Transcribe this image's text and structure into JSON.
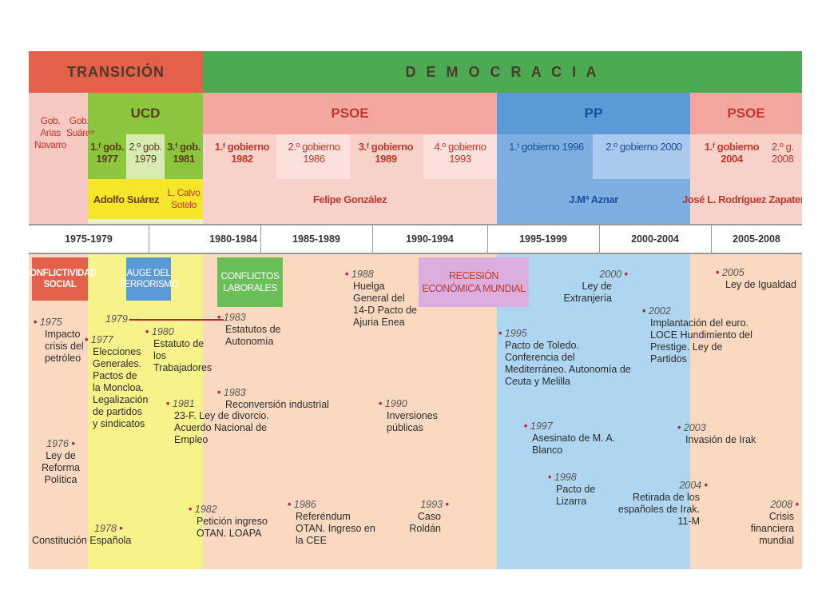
{
  "eras": {
    "transicion": "TRANSICIÓN",
    "democracia": "D E M O C R A C I A"
  },
  "parties": {
    "ucd": "UCD",
    "psoe1": "PSOE",
    "pp": "PP",
    "psoe2": "PSOE"
  },
  "governments": {
    "gob_arias": "Gob. Arias Navarro",
    "gob_suarez": "Gob. Suárez",
    "ucd1": "1.ᶠ gob. 1977",
    "ucd2": "2.º gob. 1979",
    "ucd3": "3.ᶠ gob. 1981",
    "psoe1": "1.ᶠ gobierno 1982",
    "psoe2": "2.º gobierno 1986",
    "psoe3": "3.ᶠ gobierno 1989",
    "psoe4": "4.º gobierno 1993",
    "pp1": "1.ᶠ gobierno 1996",
    "pp2": "2.º gobierno 2000",
    "psoe5": "1.ᶠ gobierno 2004",
    "psoe6": "2.º g. 2008"
  },
  "leaders": {
    "suarez": "Adolfo Suárez",
    "calvo": "L. Calvo Sotelo",
    "gonzalez": "Felipe González",
    "aznar": "J.Mª Aznar",
    "zapatero": "José L. Rodríguez Zapatero"
  },
  "periods": [
    "1975-1979",
    "1980-1984",
    "1985-1989",
    "1990-1994",
    "1995-1999",
    "2000-2004",
    "2005-2008"
  ],
  "themes": {
    "conflictividad": "CONFLICTIVIDAD SOCIAL",
    "terrorismo": "AUGE DEL TERRORISMO",
    "conflictos": "CONFLICTOS LABORALES",
    "recesion": "RECESIÓN ECONÓMICA MUNDIAL"
  },
  "events": {
    "e1975_year": "1975",
    "e1975_text": "Impacto crisis del petróleo",
    "e1976_year": "1976",
    "e1976_text": "Ley de Reforma Política",
    "e1977_year": "1977",
    "e1977_text": "Elecciones Generales. Pactos de la Moncloa. Legalización de partidos y sindicatos",
    "e1978_year": "1978",
    "e1978_text": "Constitución Española",
    "e1979_year": "1979",
    "e1980_year": "1980",
    "e1980_text": "Estatuto de los Trabajadores",
    "e1981_year": "1981",
    "e1981_text": "23-F. Ley de divorcio. Acuerdo Nacional de Empleo",
    "e1983a_year": "1983",
    "e1983a_text": "Estatutos de Autonomía",
    "e1983b_year": "1983",
    "e1983b_text": "Reconversión industrial",
    "e1982_year": "1982",
    "e1982_text": "Petición ingreso OTAN. LOAPA",
    "e1986_year": "1986",
    "e1986_text": "Referéndum OTAN. Ingreso en la CEE",
    "e1988_year": "1988",
    "e1988_text": "Huelga General del 14-D Pacto de Ajuria Enea",
    "e1990_year": "1990",
    "e1990_text": "Inversiones públicas",
    "e1993_year": "1993",
    "e1993_text": "Caso Roldán",
    "e1995_year": "1995",
    "e1995_text": "Pacto de Toledo. Conferencia del Mediterráneo. Autonomía de Ceuta y Melilla",
    "e1997_year": "1997",
    "e1997_text": "Asesinato de M. A. Blanco",
    "e1998_year": "1998",
    "e1998_text": "Pacto de Lizarra",
    "e2000_year": "2000",
    "e2000_text": "Ley de Extranjería",
    "e2002_year": "2002",
    "e2002_text": "Implantación del euro. LOCE Hundimiento del Prestige. Ley de Partidos",
    "e2003_year": "2003",
    "e2003_text": "Invasión de Irak",
    "e2004_year": "2004",
    "e2004_text": "Retirada de los españoles de Irak. 11-M",
    "e2005_year": "2005",
    "e2005_text": "Ley de Igualdad",
    "e2008_year": "2008",
    "e2008_text": "Crisis financiera mundial"
  },
  "colors": {
    "transicion": "#e4604a",
    "democracia": "#4caa52",
    "ucd": "#8cc63f",
    "psoe": "#f4a6a0",
    "pp": "#5b9bd5",
    "suarez": "#f5e62a",
    "body_bg": "#fbd9c0",
    "pp_bg": "#aed6f1",
    "ucd_bg": "#f8f28a"
  }
}
